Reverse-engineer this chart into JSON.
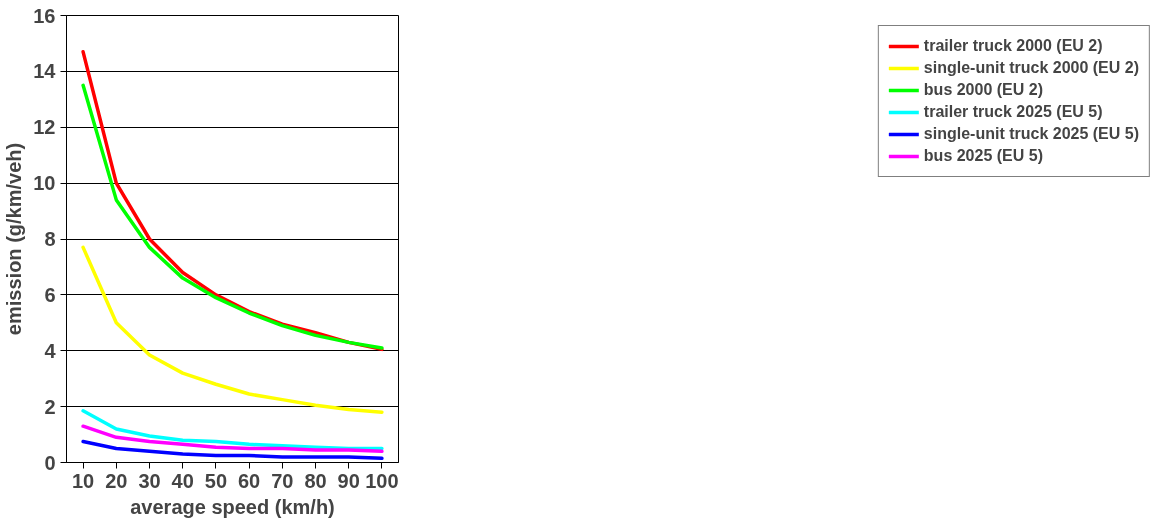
{
  "chart_data": {
    "type": "line",
    "xlabel": "average speed (km/h)",
    "ylabel": "emission (g/km/veh)",
    "categories": [
      "10",
      "20",
      "30",
      "40",
      "50",
      "60",
      "70",
      "80",
      "90",
      "100"
    ],
    "series": [
      {
        "name": "trailer truck 2000 (EU 2)",
        "color": "#ff0000",
        "values": [
          14.7,
          10.0,
          8.0,
          6.8,
          6.0,
          5.4,
          4.95,
          4.65,
          4.3,
          4.05
        ]
      },
      {
        "name": "single-unit truck 2000 (EU 2)",
        "color": "#ffff00",
        "values": [
          7.7,
          5.0,
          3.85,
          3.2,
          2.8,
          2.45,
          2.25,
          2.05,
          1.9,
          1.8
        ]
      },
      {
        "name": "bus 2000 (EU 2)",
        "color": "#00ff00",
        "values": [
          13.5,
          9.4,
          7.7,
          6.6,
          5.9,
          5.35,
          4.9,
          4.55,
          4.3,
          4.1
        ]
      },
      {
        "name": "trailer truck 2025 (EU 5)",
        "color": "#00ffff",
        "values": [
          1.85,
          1.2,
          0.95,
          0.8,
          0.75,
          0.65,
          0.6,
          0.55,
          0.5,
          0.5
        ]
      },
      {
        "name": "single-unit truck 2025 (EU 5)",
        "color": "#0000ff",
        "values": [
          0.75,
          0.5,
          0.4,
          0.3,
          0.25,
          0.25,
          0.2,
          0.2,
          0.2,
          0.15
        ]
      },
      {
        "name": "bus 2025 (EU 5)",
        "color": "#ff00ff",
        "values": [
          1.3,
          0.9,
          0.75,
          0.65,
          0.55,
          0.5,
          0.5,
          0.45,
          0.45,
          0.4
        ]
      }
    ],
    "ylim": [
      0,
      16
    ],
    "yticks": [
      0,
      2,
      4,
      6,
      8,
      10,
      12,
      14,
      16
    ],
    "grid": "y",
    "legend": "right"
  }
}
